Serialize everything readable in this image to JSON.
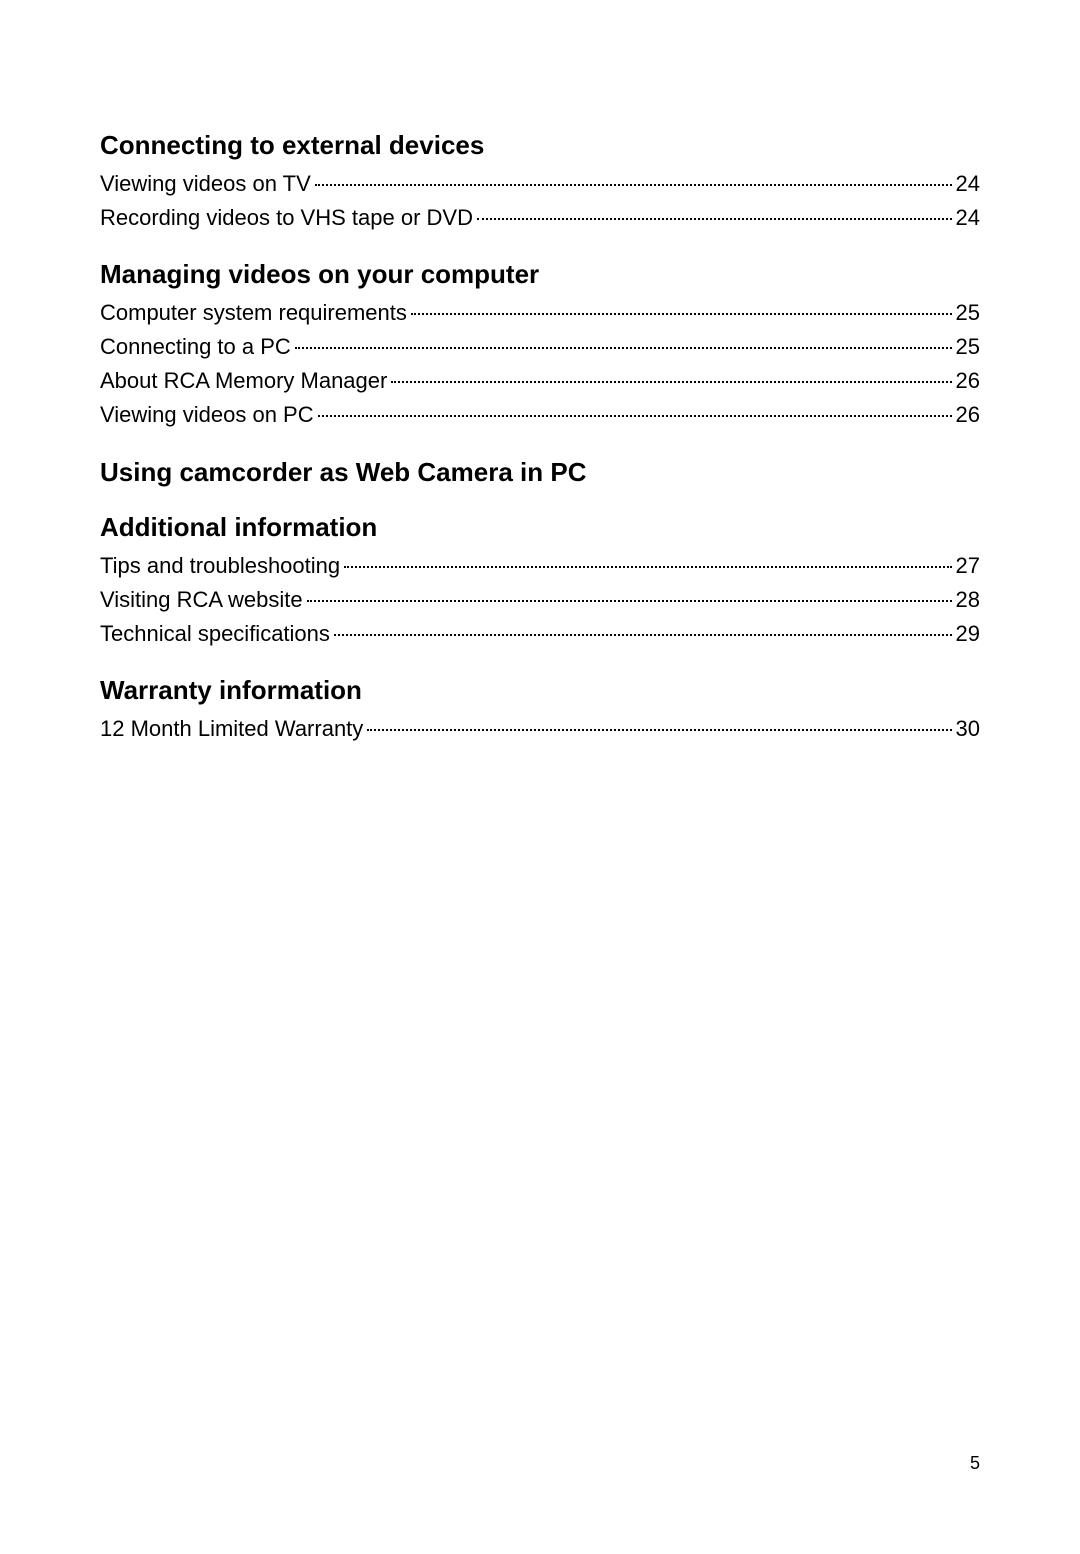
{
  "sections": [
    {
      "title": "Connecting to external devices",
      "entries": [
        {
          "label": "Viewing videos on TV",
          "page": "24"
        },
        {
          "label": "Recording videos to VHS tape or DVD ",
          "page": "24"
        }
      ]
    },
    {
      "title": "Managing videos on your computer",
      "entries": [
        {
          "label": "Computer system requirements",
          "page": "25"
        },
        {
          "label": "Connecting to a PC",
          "page": "25"
        },
        {
          "label": "About RCA Memory Manager",
          "page": "26"
        },
        {
          "label": "Viewing videos on PC",
          "page": "26"
        }
      ]
    },
    {
      "title": "Using camcorder as Web Camera in PC",
      "entries": []
    },
    {
      "title": "Additional information",
      "entries": [
        {
          "label": "Tips and troubleshooting",
          "page": "27"
        },
        {
          "label": "Visiting RCA website",
          "page": "28"
        },
        {
          "label": "Technical specifications",
          "page": "29"
        }
      ]
    },
    {
      "title": "Warranty information",
      "entries": [
        {
          "label": "12 Month Limited Warranty",
          "page": "30"
        }
      ]
    }
  ],
  "pageNumber": "5",
  "styles": {
    "background": "#ffffff",
    "textColor": "#000000",
    "titleFontSize": 26,
    "entryFontSize": 22,
    "pageNumberFontSize": 18
  }
}
